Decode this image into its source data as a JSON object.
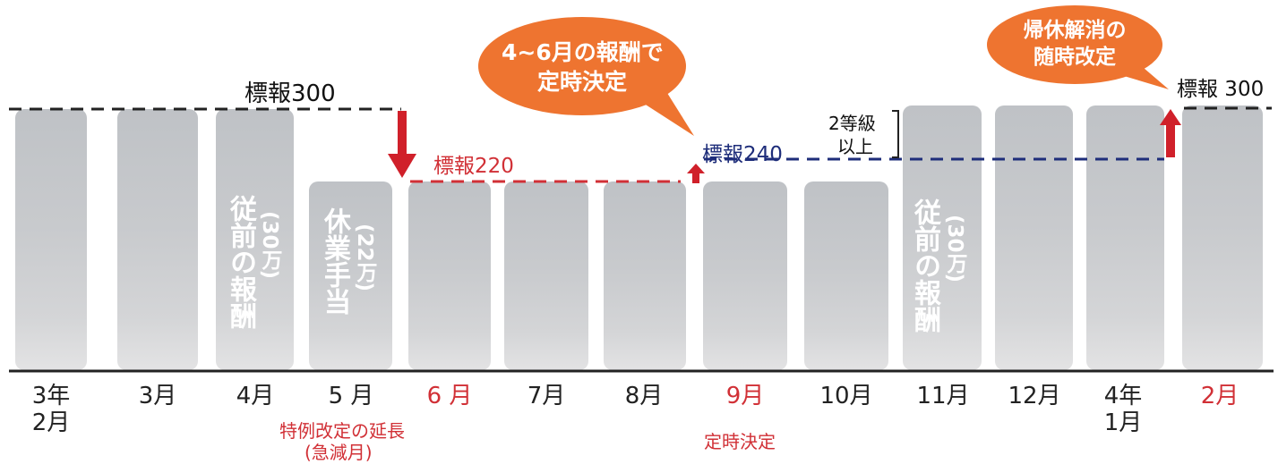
{
  "colors": {
    "bar": "#c6c8cb",
    "red": "#d13036",
    "navy": "#1e2d7a",
    "black_line": "#222222",
    "bubble": "#ee7430",
    "arrow": "#d0202a"
  },
  "months": [
    {
      "label": "3年\n2月",
      "color": "black"
    },
    {
      "label": "3月",
      "color": "black"
    },
    {
      "label": "4月",
      "color": "black"
    },
    {
      "label": "5 月",
      "color": "black"
    },
    {
      "label": "6 月",
      "color": "red"
    },
    {
      "label": "7月",
      "color": "black"
    },
    {
      "label": "8月",
      "color": "black"
    },
    {
      "label": "9月",
      "color": "red"
    },
    {
      "label": "10月",
      "color": "black"
    },
    {
      "label": "11月",
      "color": "black"
    },
    {
      "label": "12月",
      "color": "black"
    },
    {
      "label": "4年\n1月",
      "color": "black"
    },
    {
      "label": "2月",
      "color": "red"
    }
  ],
  "bar_texts": {
    "previous_pay_1": "従前の報酬",
    "previous_pay_1_amount": "(30万)",
    "leave_allowance": "休業手当",
    "leave_allowance_amount": "(22万)",
    "previous_pay_2": "従前の報酬",
    "previous_pay_2_amount": "(30万)"
  },
  "labels": {
    "std_300_left": "標報300",
    "std_220": "標報220",
    "std_240": "標報240",
    "std_300_right": "標報 300",
    "grade_2": "2等級",
    "grade_above": "以上",
    "special_revision": "特例改定の延長",
    "special_revision_sub": "(急減月)",
    "regular_decision": "定時決定"
  },
  "bubbles": {
    "left_line1": "4~6月の報酬で",
    "left_line2": "定時決定",
    "right_line1": "帰休解消の",
    "right_line2": "随時改定"
  }
}
